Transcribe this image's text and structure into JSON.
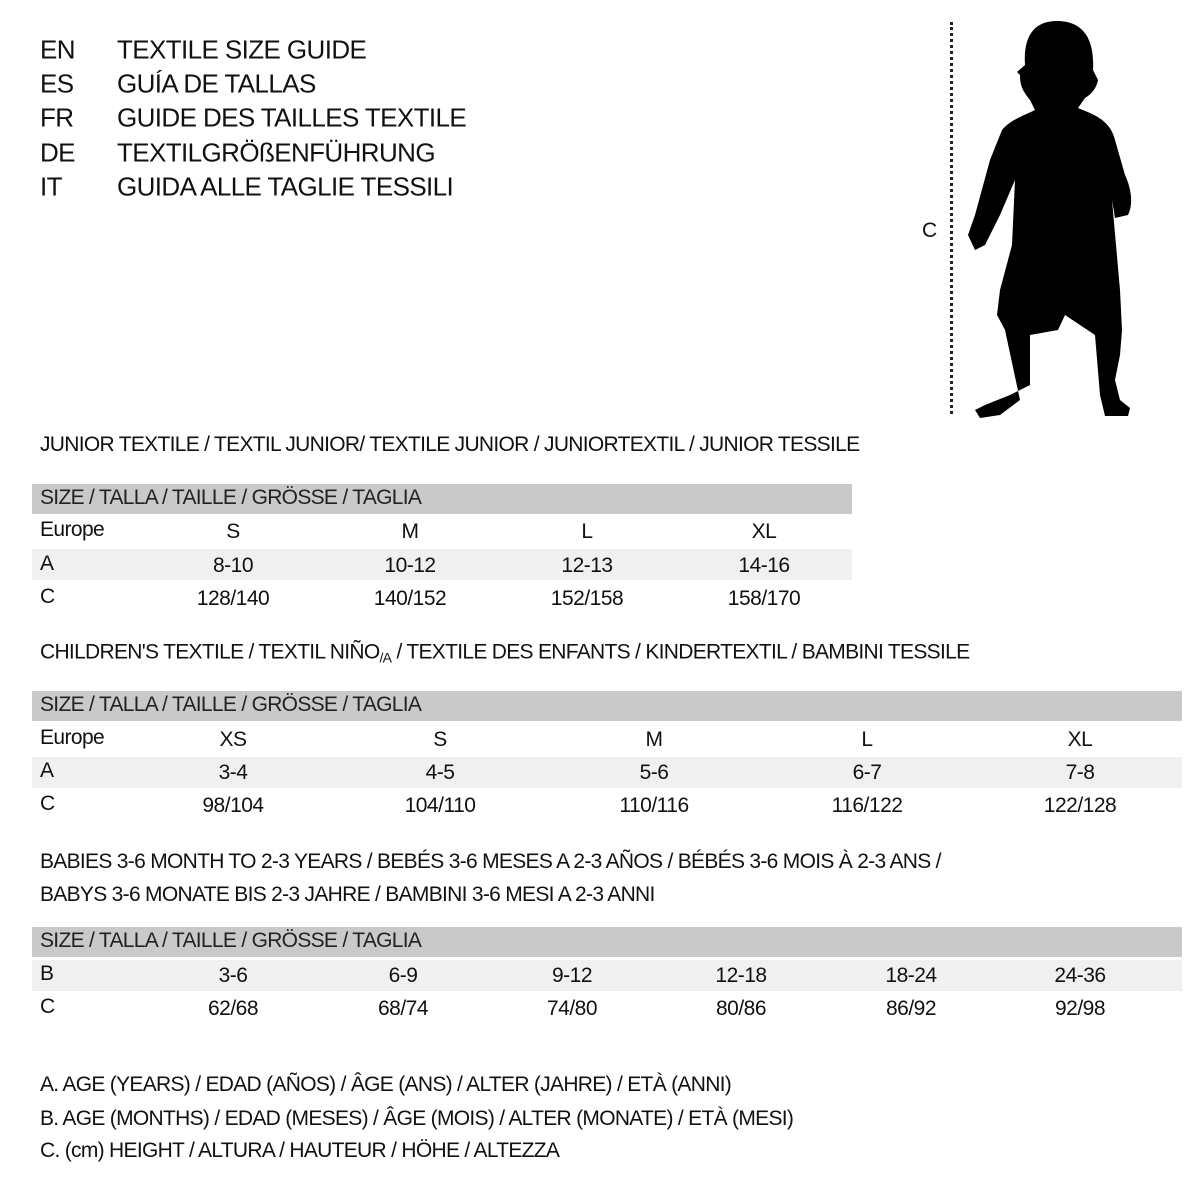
{
  "languages": [
    {
      "code": "EN",
      "title": "TEXTILE SIZE GUIDE"
    },
    {
      "code": "ES",
      "title": "GUÍA DE TALLAS"
    },
    {
      "code": "FR",
      "title": "GUIDE DES TAILLES TEXTILE"
    },
    {
      "code": "DE",
      "title": "TEXTILGRÖßENFÜHRUNG"
    },
    {
      "code": "IT",
      "title": "GUIDA ALLE TAGLIE TESSILI"
    }
  ],
  "figure": {
    "measure_label": "C",
    "icon": "child-silhouette"
  },
  "size_header": "SIZE / TALLA / TAILLE / GRÖSSE / TAGLIA",
  "junior": {
    "heading": "JUNIOR TEXTILE / TEXTIL JUNIOR/ TEXTILE JUNIOR / JUNIORTEXTIL / JUNIOR TESSILE",
    "rows": [
      {
        "label": "Europe",
        "values": [
          "S",
          "M",
          "L",
          "XL"
        ]
      },
      {
        "label": "A",
        "values": [
          "8-10",
          "10-12",
          "12-13",
          "14-16"
        ]
      },
      {
        "label": "C",
        "values": [
          "128/140",
          "140/152",
          "152/158",
          "158/170"
        ]
      }
    ]
  },
  "children": {
    "heading_pre": "CHILDREN'S TEXTILE / TEXTIL NIÑO",
    "heading_sub": "/A",
    "heading_post": " / TEXTILE DES ENFANTS / KINDERTEXTIL / BAMBINI TESSILE",
    "rows": [
      {
        "label": "Europe",
        "values": [
          "XS",
          "S",
          "M",
          "L",
          "XL"
        ]
      },
      {
        "label": "A",
        "values": [
          "3-4",
          "4-5",
          "5-6",
          "6-7",
          "7-8"
        ]
      },
      {
        "label": "C",
        "values": [
          "98/104",
          "104/110",
          "110/116",
          "116/122",
          "122/128"
        ]
      }
    ]
  },
  "babies": {
    "heading_line1": "BABIES 3-6 MONTH TO 2-3 YEARS / BEBÉS 3-6 MESES A 2-3 AÑOS / BÉBÉS 3-6 MOIS À 2-3 ANS /",
    "heading_line2": "BABYS 3-6 MONATE BIS 2-3 JAHRE / BAMBINI 3-6 MESI A 2-3 ANNI",
    "rows": [
      {
        "label": "B",
        "values": [
          "3-6",
          "6-9",
          "9-12",
          "12-18",
          "18-24",
          "24-36"
        ]
      },
      {
        "label": "C",
        "values": [
          "62/68",
          "68/74",
          "74/80",
          "80/86",
          "86/92",
          "92/98"
        ]
      }
    ]
  },
  "legend": [
    "A. AGE (YEARS) / EDAD (AÑOS) / ÂGE (ANS) / ALTER (JAHRE) / ETÀ (ANNI)",
    "B. AGE (MONTHS) / EDAD (MESES) / ÂGE (MOIS) / ALTER (MONATE) / ETÀ (MESI)",
    "C. (cm) HEIGHT / ALTURA / HAUTEUR / HÖHE / ALTEZZA"
  ],
  "colors": {
    "header_band": "#c9c9c9",
    "alt_row": "#f0f0f0",
    "text": "#111111"
  }
}
